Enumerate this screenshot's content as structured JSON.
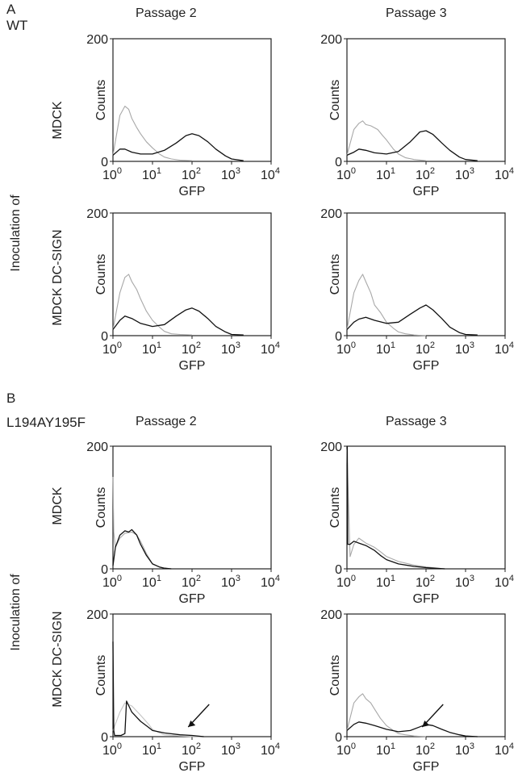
{
  "figure": {
    "panel_a": {
      "letter": "A",
      "construct": "WT"
    },
    "panel_b": {
      "letter": "B",
      "construct": "L194AY195F"
    },
    "columns": [
      "Passage 2",
      "Passage 3"
    ],
    "side_label": "Inoculation of",
    "row_labels": [
      "MDCK",
      "MDCK DC-SIGN"
    ]
  },
  "chart_data": [
    {
      "type": "line",
      "panel": "A",
      "row": "MDCK",
      "column": "Passage 2",
      "xlabel": "GFP",
      "ylabel": "Counts",
      "xscale": "log",
      "xlim": [
        1,
        10000
      ],
      "ylim": [
        0,
        200
      ],
      "yticks": [
        "0",
        "200"
      ],
      "xticks": [
        "10^0",
        "10^1",
        "10^2",
        "10^3",
        "10^4"
      ],
      "series": [
        {
          "color": "#a8a8a8",
          "x": [
            1,
            1.5,
            2,
            2.5,
            3,
            4,
            5,
            7,
            10,
            15,
            20,
            30,
            50,
            100
          ],
          "y": [
            10,
            75,
            90,
            85,
            70,
            55,
            45,
            32,
            22,
            12,
            7,
            4,
            2,
            1
          ]
        },
        {
          "color": "#111111",
          "x": [
            1,
            1.5,
            2,
            3,
            5,
            10,
            20,
            40,
            70,
            100,
            150,
            250,
            400,
            700,
            1000,
            2000
          ],
          "y": [
            10,
            20,
            20,
            15,
            12,
            12,
            18,
            30,
            42,
            45,
            42,
            32,
            20,
            9,
            4,
            1
          ]
        }
      ]
    },
    {
      "type": "line",
      "panel": "A",
      "row": "MDCK",
      "column": "Passage 3",
      "xlabel": "GFP",
      "ylabel": "Counts",
      "xscale": "log",
      "xlim": [
        1,
        10000
      ],
      "ylim": [
        0,
        200
      ],
      "yticks": [
        "0",
        "200"
      ],
      "xticks": [
        "10^0",
        "10^1",
        "10^2",
        "10^3",
        "10^4"
      ],
      "series": [
        {
          "color": "#a8a8a8",
          "x": [
            1,
            1.5,
            2,
            2.5,
            3,
            4,
            6,
            8,
            10,
            15,
            20,
            30,
            50,
            100
          ],
          "y": [
            10,
            52,
            62,
            66,
            60,
            58,
            52,
            42,
            35,
            20,
            12,
            6,
            3,
            1
          ]
        },
        {
          "color": "#111111",
          "x": [
            1,
            1.5,
            2,
            3,
            5,
            10,
            20,
            40,
            70,
            100,
            150,
            250,
            400,
            700,
            1000,
            2000
          ],
          "y": [
            10,
            15,
            20,
            18,
            14,
            12,
            16,
            32,
            48,
            50,
            44,
            30,
            18,
            7,
            3,
            1
          ]
        }
      ]
    },
    {
      "type": "line",
      "panel": "A",
      "row": "MDCK DC-SIGN",
      "column": "Passage 2",
      "xlabel": "GFP",
      "ylabel": "Counts",
      "xscale": "log",
      "xlim": [
        1,
        10000
      ],
      "ylim": [
        0,
        200
      ],
      "yticks": [
        "0",
        "200"
      ],
      "xticks": [
        "10^0",
        "10^1",
        "10^2",
        "10^3",
        "10^4"
      ],
      "series": [
        {
          "color": "#a8a8a8",
          "x": [
            1,
            1.5,
            2,
            2.5,
            3,
            4,
            5,
            7,
            10,
            15,
            20,
            30,
            50,
            100
          ],
          "y": [
            10,
            70,
            95,
            100,
            88,
            75,
            60,
            40,
            25,
            14,
            7,
            3,
            2,
            1
          ]
        },
        {
          "color": "#111111",
          "x": [
            1,
            1.5,
            2,
            3,
            5,
            10,
            20,
            40,
            70,
            100,
            150,
            250,
            400,
            700,
            1000,
            2000
          ],
          "y": [
            10,
            25,
            32,
            28,
            20,
            15,
            18,
            32,
            42,
            45,
            40,
            28,
            15,
            6,
            2,
            1
          ]
        }
      ]
    },
    {
      "type": "line",
      "panel": "A",
      "row": "MDCK DC-SIGN",
      "column": "Passage 3",
      "xlabel": "GFP",
      "ylabel": "Counts",
      "xscale": "log",
      "xlim": [
        1,
        10000
      ],
      "ylim": [
        0,
        200
      ],
      "yticks": [
        "0",
        "200"
      ],
      "xticks": [
        "10^0",
        "10^1",
        "10^2",
        "10^3",
        "10^4"
      ],
      "series": [
        {
          "color": "#a8a8a8",
          "x": [
            1,
            1.5,
            2,
            2.5,
            3,
            4,
            5,
            7,
            10,
            15,
            20,
            30,
            50,
            100
          ],
          "y": [
            10,
            70,
            90,
            100,
            88,
            70,
            50,
            38,
            22,
            12,
            6,
            3,
            1,
            0
          ]
        },
        {
          "color": "#111111",
          "x": [
            1,
            1.5,
            2,
            3,
            5,
            10,
            20,
            40,
            70,
            100,
            150,
            250,
            400,
            700,
            1000,
            2000
          ],
          "y": [
            10,
            22,
            27,
            30,
            25,
            20,
            22,
            35,
            45,
            50,
            42,
            28,
            14,
            5,
            2,
            1
          ]
        }
      ]
    },
    {
      "type": "line",
      "panel": "B",
      "row": "MDCK",
      "column": "Passage 2",
      "xlabel": "GFP",
      "ylabel": "Counts",
      "xscale": "log",
      "xlim": [
        1,
        10000
      ],
      "ylim": [
        0,
        200
      ],
      "yticks": [
        "0",
        "200"
      ],
      "xticks": [
        "10^0",
        "10^1",
        "10^2",
        "10^3",
        "10^4"
      ],
      "series": [
        {
          "color": "#a8a8a8",
          "x": [
            1,
            1.05,
            1.15,
            1.5,
            2,
            3,
            4,
            5,
            7,
            10,
            15,
            20,
            30
          ],
          "y": [
            150,
            60,
            35,
            50,
            58,
            60,
            55,
            45,
            25,
            8,
            3,
            1,
            0
          ]
        },
        {
          "color": "#111111",
          "x": [
            1,
            1.15,
            1.5,
            2,
            2.5,
            3,
            4,
            5,
            7,
            10,
            15,
            20,
            30
          ],
          "y": [
            5,
            35,
            55,
            62,
            60,
            64,
            55,
            40,
            22,
            8,
            3,
            1,
            0
          ]
        }
      ]
    },
    {
      "type": "line",
      "panel": "B",
      "row": "MDCK",
      "column": "Passage 3",
      "xlabel": "GFP",
      "ylabel": "Counts",
      "xscale": "log",
      "xlim": [
        1,
        10000
      ],
      "ylim": [
        0,
        200
      ],
      "yticks": [
        "0",
        "200"
      ],
      "xticks": [
        "10^0",
        "10^1",
        "10^2",
        "10^3",
        "10^4"
      ],
      "series": [
        {
          "color": "#a8a8a8",
          "x": [
            1,
            1.2,
            1.5,
            2,
            3,
            5,
            7,
            10,
            20,
            50,
            100,
            300
          ],
          "y": [
            195,
            20,
            40,
            50,
            42,
            35,
            28,
            20,
            12,
            6,
            3,
            0
          ]
        },
        {
          "color": "#111111",
          "x": [
            1.02,
            1.05,
            1.2,
            1.5,
            2,
            3,
            5,
            7,
            10,
            20,
            50,
            100,
            300
          ],
          "y": [
            210,
            40,
            40,
            45,
            42,
            38,
            30,
            22,
            15,
            8,
            4,
            2,
            0
          ]
        }
      ]
    },
    {
      "type": "line",
      "panel": "B",
      "row": "MDCK DC-SIGN",
      "column": "Passage 2",
      "xlabel": "GFP",
      "ylabel": "Counts",
      "xscale": "log",
      "xlim": [
        1,
        10000
      ],
      "ylim": [
        0,
        200
      ],
      "yticks": [
        "0",
        "200"
      ],
      "xticks": [
        "10^0",
        "10^1",
        "10^2",
        "10^3",
        "10^4"
      ],
      "annotations": [
        "arrow near GFP 10^2"
      ],
      "series": [
        {
          "color": "#c4c4c4",
          "x": [
            1,
            1.5,
            2,
            3,
            5,
            8,
            10,
            15,
            20,
            30,
            50,
            100,
            200
          ],
          "y": [
            10,
            40,
            55,
            50,
            35,
            20,
            12,
            6,
            3,
            2,
            1,
            0,
            0
          ]
        },
        {
          "color": "#111111",
          "x": [
            1,
            1.05,
            1.1,
            1.3,
            1.6,
            2,
            2.2,
            3,
            5,
            8,
            10,
            20,
            50,
            100,
            200
          ],
          "y": [
            155,
            10,
            2,
            2,
            2,
            5,
            58,
            40,
            25,
            15,
            10,
            6,
            3,
            2,
            0
          ]
        }
      ]
    },
    {
      "type": "line",
      "panel": "B",
      "row": "MDCK DC-SIGN",
      "column": "Passage 3",
      "xlabel": "GFP",
      "ylabel": "Counts",
      "xscale": "log",
      "xlim": [
        1,
        10000
      ],
      "ylim": [
        0,
        200
      ],
      "yticks": [
        "0",
        "200"
      ],
      "xticks": [
        "10^0",
        "10^1",
        "10^2",
        "10^3",
        "10^4"
      ],
      "annotations": [
        "arrow near GFP 10^2"
      ],
      "series": [
        {
          "color": "#a8a8a8",
          "x": [
            1,
            1.5,
            2,
            2.5,
            3,
            4,
            5,
            7,
            10,
            15,
            20,
            30,
            50,
            100
          ],
          "y": [
            10,
            55,
            65,
            70,
            62,
            55,
            45,
            30,
            18,
            10,
            5,
            3,
            1,
            0
          ]
        },
        {
          "color": "#111111",
          "x": [
            1,
            1.5,
            2,
            3,
            5,
            10,
            20,
            40,
            70,
            100,
            150,
            250,
            400,
            700,
            1000,
            2000
          ],
          "y": [
            10,
            20,
            24,
            22,
            18,
            12,
            8,
            10,
            16,
            20,
            18,
            12,
            7,
            3,
            1,
            0
          ]
        }
      ]
    }
  ]
}
